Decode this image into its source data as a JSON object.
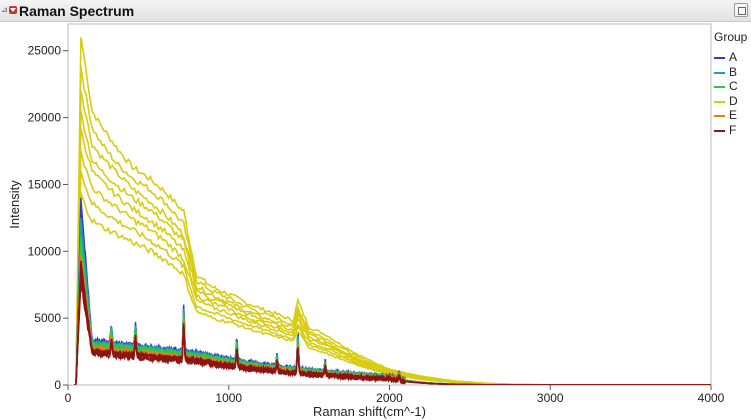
{
  "window": {
    "title": "Raman Spectrum"
  },
  "icons": {
    "disclosure": "disclosure-triangle-icon",
    "hotspot": "red-triangle-menu-icon",
    "corner": "window-restore-icon"
  },
  "legend": {
    "title": "Group",
    "items": [
      {
        "label": "A",
        "color": "#3a3ab8"
      },
      {
        "label": "B",
        "color": "#1e9fb4"
      },
      {
        "label": "C",
        "color": "#28c850"
      },
      {
        "label": "D",
        "color": "#d8cc10"
      },
      {
        "label": "E",
        "color": "#e67e1e"
      },
      {
        "label": "F",
        "color": "#8c1414"
      }
    ]
  },
  "chart_data": {
    "type": "line",
    "xlabel": "Raman shift(cm^-1)",
    "ylabel": "Intensity",
    "xlim": [
      0,
      4000
    ],
    "ylim": [
      0,
      27000
    ],
    "xticks": [
      "0",
      "1000",
      "2000",
      "3000",
      "4000"
    ],
    "yticks": [
      "0",
      "5000",
      "10000",
      "15000",
      "20000",
      "25000"
    ],
    "grid": false,
    "legend_position": "right",
    "series": [
      {
        "name": "D",
        "color": "#d8cc10",
        "x": [
          50,
          80,
          100,
          150,
          200,
          300,
          400,
          500,
          600,
          700,
          720,
          760,
          800,
          900,
          1000,
          1100,
          1200,
          1300,
          1400,
          1430,
          1500,
          1600,
          1700,
          1800,
          1900,
          2000,
          2100,
          2200,
          2400,
          2600,
          2800,
          3000,
          3500,
          4000
        ],
        "lines": [
          [
            200,
            26000,
            24500,
            20500,
            19500,
            17800,
            16300,
            15500,
            14500,
            13200,
            13000,
            10500,
            8200,
            7300,
            6800,
            6200,
            5700,
            5300,
            4800,
            6300,
            4300,
            3800,
            3000,
            2300,
            1700,
            1200,
            900,
            650,
            300,
            130,
            40,
            10,
            0,
            0
          ],
          [
            200,
            23800,
            22300,
            19300,
            18200,
            16600,
            15500,
            14700,
            13700,
            12300,
            12000,
            9800,
            7800,
            7000,
            6500,
            5900,
            5400,
            5000,
            4500,
            5800,
            4000,
            3500,
            2800,
            2100,
            1600,
            1100,
            850,
            600,
            280,
            120,
            35,
            10,
            0,
            0
          ],
          [
            200,
            22000,
            20800,
            18000,
            17200,
            15900,
            14700,
            13800,
            12800,
            11500,
            11200,
            9300,
            7400,
            6700,
            6200,
            5600,
            5100,
            4700,
            4300,
            5500,
            3800,
            3300,
            2600,
            2000,
            1500,
            1050,
            800,
            560,
            260,
            110,
            30,
            8,
            0,
            0
          ],
          [
            200,
            20500,
            19300,
            16800,
            16100,
            15000,
            14000,
            13200,
            12200,
            11000,
            10700,
            8900,
            7100,
            6400,
            6000,
            5400,
            4900,
            4500,
            4100,
            5200,
            3600,
            3100,
            2500,
            1900,
            1400,
            1000,
            760,
            530,
            240,
            100,
            28,
            8,
            0,
            0
          ],
          [
            200,
            19200,
            18100,
            16000,
            15300,
            14200,
            13200,
            12400,
            11500,
            10300,
            10000,
            8400,
            6700,
            6100,
            5700,
            5100,
            4700,
            4300,
            3900,
            4900,
            3400,
            3000,
            2400,
            1800,
            1350,
            950,
            720,
            500,
            230,
            95,
            25,
            7,
            0,
            0
          ],
          [
            200,
            17500,
            16500,
            14800,
            14200,
            13300,
            12400,
            11700,
            10800,
            9700,
            9400,
            7900,
            6300,
            5800,
            5400,
            4900,
            4500,
            4100,
            3700,
            4600,
            3200,
            2800,
            2200,
            1700,
            1250,
            900,
            680,
            470,
            210,
            90,
            22,
            6,
            0,
            0
          ],
          [
            200,
            16000,
            15100,
            13600,
            13100,
            12300,
            11600,
            10900,
            10100,
            9100,
            8800,
            7300,
            5900,
            5400,
            5000,
            4600,
            4200,
            3800,
            3500,
            4300,
            3000,
            2600,
            2100,
            1600,
            1200,
            850,
            640,
            440,
            200,
            85,
            20,
            6,
            0,
            0
          ],
          [
            200,
            14400,
            13600,
            12300,
            11900,
            11300,
            10700,
            10100,
            9400,
            8500,
            8200,
            6800,
            5500,
            5000,
            4700,
            4300,
            3900,
            3600,
            3300,
            4000,
            2800,
            2400,
            1900,
            1500,
            1100,
            800,
            600,
            410,
            190,
            80,
            18,
            5,
            0,
            0
          ]
        ]
      },
      {
        "name": "A",
        "color": "#3a3ab8",
        "peak": 14000,
        "base": 2600
      },
      {
        "name": "B",
        "color": "#1e9fb4",
        "peak": 12500,
        "base": 2500
      },
      {
        "name": "C",
        "color": "#28c850",
        "peak": 11000,
        "base": 2400
      },
      {
        "name": "E",
        "color": "#e67e1e",
        "peak": 9800,
        "base": 2150
      },
      {
        "name": "F",
        "color": "#8c1414",
        "peak": 9300,
        "base": 2000
      }
    ]
  }
}
